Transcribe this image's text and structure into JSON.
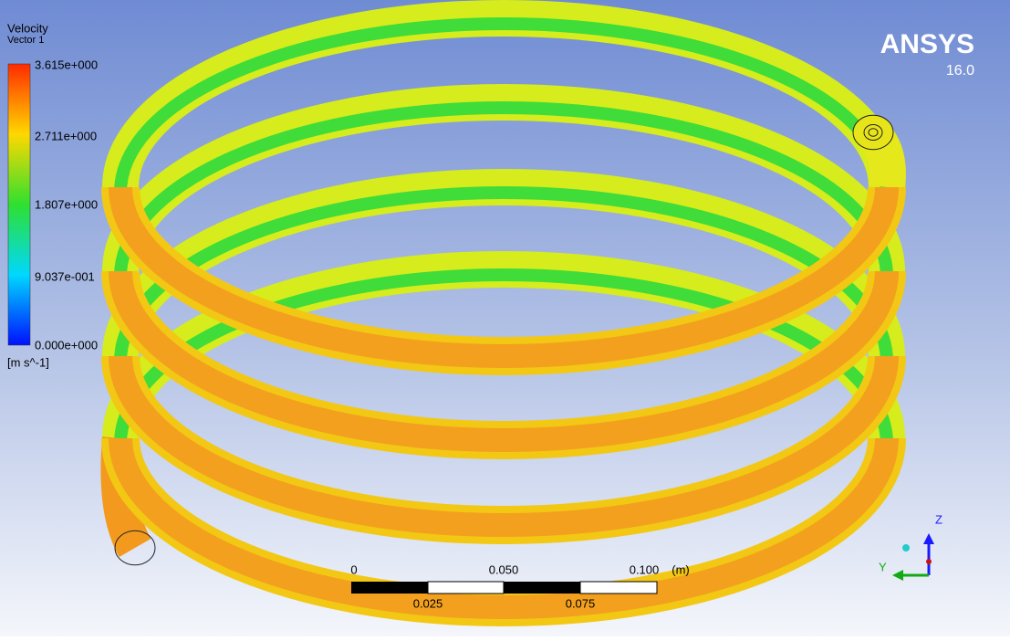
{
  "legend": {
    "title": "Velocity",
    "subtitle": "Vector 1",
    "labels": [
      "3.615e+000",
      "2.711e+000",
      "1.807e+000",
      "9.037e-001",
      "0.000e+000"
    ],
    "unit": "[m s^-1]"
  },
  "logo": {
    "name": "ANSYS",
    "version": "16.0"
  },
  "scale_bar": {
    "top_labels": [
      "0",
      "0.050",
      "0.100"
    ],
    "unit": "(m)",
    "bottom_labels": [
      "0.025",
      "0.075"
    ]
  },
  "triad": {
    "labels": [
      "Z",
      "Y"
    ]
  }
}
